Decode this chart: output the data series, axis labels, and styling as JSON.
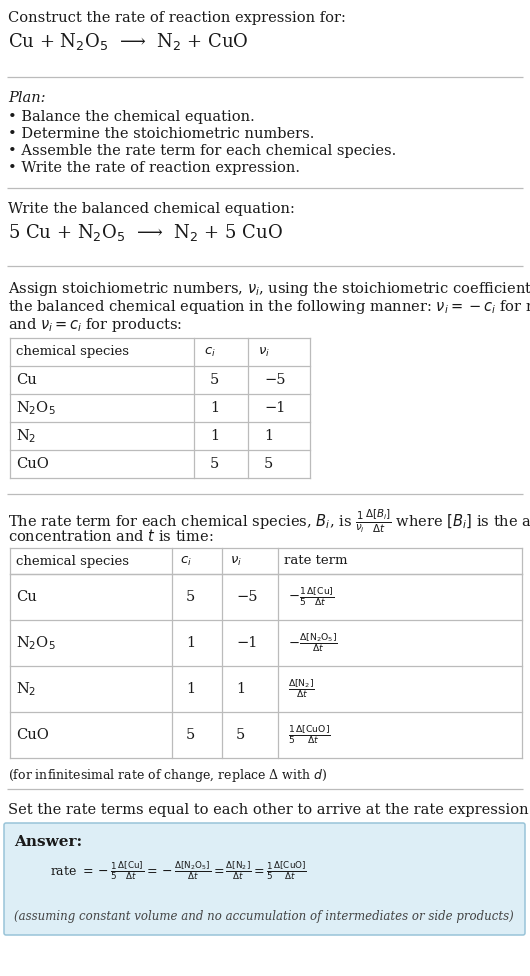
{
  "bg_color": "#ffffff",
  "text_color": "#1a1a1a",
  "line_color": "#bbbbbb",
  "font": "DejaVu Serif",
  "s1_title": "Construct the rate of reaction expression for:",
  "s1_rxn": "Cu + N$_2$O$_5$  ⟶  N$_2$ + CuO",
  "s2_title": "Plan:",
  "s2_bullets": [
    "• Balance the chemical equation.",
    "• Determine the stoichiometric numbers.",
    "• Assemble the rate term for each chemical species.",
    "• Write the rate of reaction expression."
  ],
  "s3_title": "Write the balanced chemical equation:",
  "s3_rxn": "5 Cu + N$_2$O$_5$  ⟶  N$_2$ + 5 CuO",
  "s4_line1": "Assign stoichiometric numbers, $\\nu_i$, using the stoichiometric coefficients, $c_i$, from",
  "s4_line2": "the balanced chemical equation in the following manner: $\\nu_i = -c_i$ for reactants",
  "s4_line3": "and $\\nu_i = c_i$ for products:",
  "t1_headers": [
    "chemical species",
    "$c_i$",
    "$\\nu_i$"
  ],
  "t1_rows": [
    [
      "Cu",
      "5",
      "−5"
    ],
    [
      "N$_2$O$_5$",
      "1",
      "−1"
    ],
    [
      "N$_2$",
      "1",
      "1"
    ],
    [
      "CuO",
      "5",
      "5"
    ]
  ],
  "s5_line1": "The rate term for each chemical species, $B_i$, is $\\frac{1}{\\nu_i}\\frac{\\Delta[B_i]}{\\Delta t}$ where $[B_i]$ is the amount",
  "s5_line2": "concentration and $t$ is time:",
  "t2_headers": [
    "chemical species",
    "$c_i$",
    "$\\nu_i$",
    "rate term"
  ],
  "t2_rows": [
    [
      "Cu",
      "5",
      "−5",
      "$-\\frac{1}{5}\\frac{\\Delta[\\mathrm{Cu}]}{\\Delta t}$"
    ],
    [
      "N$_2$O$_5$",
      "1",
      "−1",
      "$-\\frac{\\Delta[\\mathrm{N_2O_5}]}{\\Delta t}$"
    ],
    [
      "N$_2$",
      "1",
      "1",
      "$\\frac{\\Delta[\\mathrm{N_2}]}{\\Delta t}$"
    ],
    [
      "CuO",
      "5",
      "5",
      "$\\frac{1}{5}\\frac{\\Delta[\\mathrm{CuO}]}{\\Delta t}$"
    ]
  ],
  "s5_footnote": "(for infinitesimal rate of change, replace Δ with $d$)",
  "s6_title": "Set the rate terms equal to each other to arrive at the rate expression:",
  "ans_label": "Answer:",
  "ans_eq": "rate $= -\\frac{1}{5}\\frac{\\Delta[\\mathrm{Cu}]}{\\Delta t} = -\\frac{\\Delta[\\mathrm{N_2O_5}]}{\\Delta t} = \\frac{\\Delta[\\mathrm{N_2}]}{\\Delta t} = \\frac{1}{5}\\frac{\\Delta[\\mathrm{CuO}]}{\\Delta t}$",
  "ans_foot": "(assuming constant volume and no accumulation of intermediates or side products)",
  "ans_bg": "#ddeef6",
  "ans_border": "#99c4d8"
}
